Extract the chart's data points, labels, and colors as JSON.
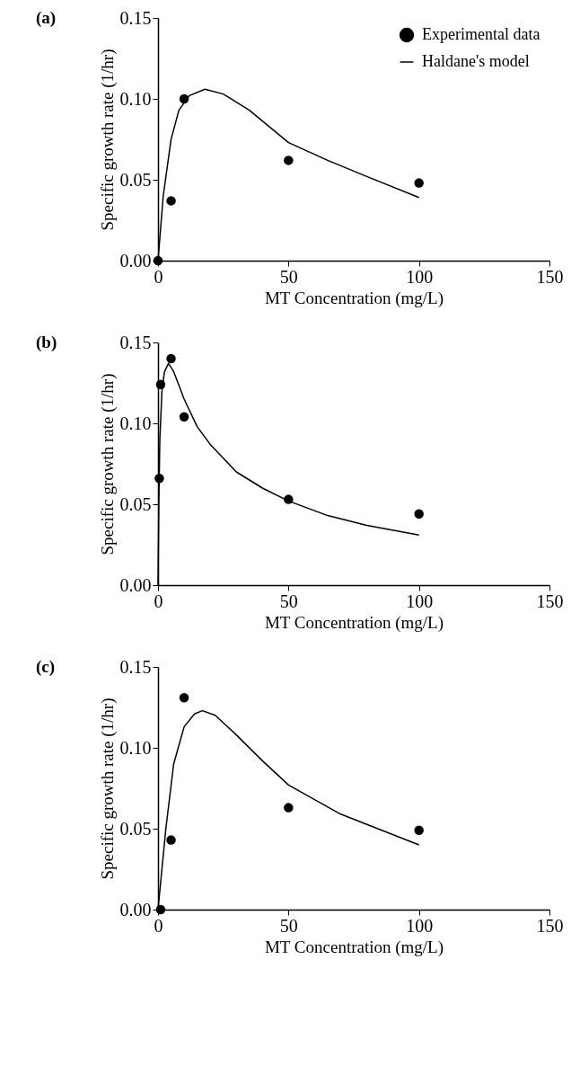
{
  "chart_data": [
    {
      "type": "line",
      "title": "(a)",
      "xlabel": "MT Concentration (mg/L)",
      "ylabel": "Specific growth rate (1/hr)",
      "xlim": [
        0,
        150
      ],
      "xticks": [
        0,
        50,
        100,
        150
      ],
      "ylim": [
        0,
        0.15
      ],
      "yticks": [
        {
          "value": 0,
          "label": "0.00"
        },
        {
          "value": 0.05,
          "label": "0.05"
        },
        {
          "value": 0.1,
          "label": "0.10"
        },
        {
          "value": 0.15,
          "label": "0.15"
        }
      ],
      "legend": "top right",
      "series": [
        {
          "name": "Experimental data",
          "type": "scatter",
          "marker": "circle",
          "color": "#000000",
          "x": [
            0,
            5,
            10,
            50,
            100
          ],
          "values": [
            0,
            0.037,
            0.1,
            0.062,
            0.048
          ]
        },
        {
          "name": "Haldane's model",
          "type": "line",
          "line_style": "solid",
          "color": "#000000",
          "x": [
            0,
            2,
            5,
            8,
            12,
            18,
            25,
            35,
            50,
            65,
            80,
            100
          ],
          "values": [
            0,
            0.04,
            0.075,
            0.093,
            0.102,
            0.106,
            0.103,
            0.093,
            0.073,
            0.062,
            0.052,
            0.039
          ]
        }
      ]
    },
    {
      "type": "line",
      "title": "(b)",
      "xlabel": "MT Concentration (mg/L)",
      "ylabel": "Specific growth rate (1/hr)",
      "xlim": [
        0,
        150
      ],
      "xticks": [
        0,
        50,
        100,
        150
      ],
      "ylim": [
        0,
        0.15
      ],
      "yticks": [
        {
          "value": 0,
          "label": "0.00"
        },
        {
          "value": 0.05,
          "label": "0.05"
        },
        {
          "value": 0.1,
          "label": "0.10"
        },
        {
          "value": 0.15,
          "label": "0.15"
        }
      ],
      "legend": "top right",
      "series": [
        {
          "name": "Experimental data",
          "type": "scatter",
          "marker": "circle",
          "color": "#000000",
          "x": [
            0.5,
            1,
            5,
            10,
            50,
            100
          ],
          "values": [
            0.066,
            0.124,
            0.14,
            0.104,
            0.053,
            0.044
          ]
        },
        {
          "name": "Haldane's model",
          "type": "line",
          "line_style": "solid",
          "color": "#000000",
          "x": [
            0,
            0.3,
            0.7,
            1.5,
            2.5,
            4,
            6,
            10,
            15,
            20,
            30,
            40,
            50,
            65,
            80,
            100
          ],
          "values": [
            0,
            0.05,
            0.09,
            0.12,
            0.132,
            0.137,
            0.132,
            0.115,
            0.098,
            0.087,
            0.07,
            0.06,
            0.052,
            0.043,
            0.037,
            0.031
          ]
        }
      ]
    },
    {
      "type": "line",
      "title": "(c)",
      "xlabel": "MT Concentration (mg/L)",
      "ylabel": "Specific growth rate (1/hr)",
      "xlim": [
        0,
        150
      ],
      "xticks": [
        0,
        50,
        100,
        150
      ],
      "ylim": [
        0,
        0.15
      ],
      "yticks": [
        {
          "value": 0,
          "label": "0.00"
        },
        {
          "value": 0.05,
          "label": "0.05"
        },
        {
          "value": 0.1,
          "label": "0.10"
        },
        {
          "value": 0.15,
          "label": "0.15"
        }
      ],
      "legend": "top right",
      "series": [
        {
          "name": "Experimental data",
          "type": "scatter",
          "marker": "circle",
          "color": "#000000",
          "x": [
            1,
            5,
            10,
            50,
            100
          ],
          "values": [
            0,
            0.043,
            0.131,
            0.063,
            0.049
          ]
        },
        {
          "name": "Haldane's model",
          "type": "line",
          "line_style": "solid",
          "color": "#000000",
          "x": [
            0,
            3,
            6,
            10,
            14,
            17,
            22,
            30,
            40,
            50,
            70,
            100
          ],
          "values": [
            0,
            0.05,
            0.09,
            0.113,
            0.121,
            0.123,
            0.12,
            0.108,
            0.092,
            0.077,
            0.059,
            0.04
          ]
        }
      ]
    }
  ]
}
